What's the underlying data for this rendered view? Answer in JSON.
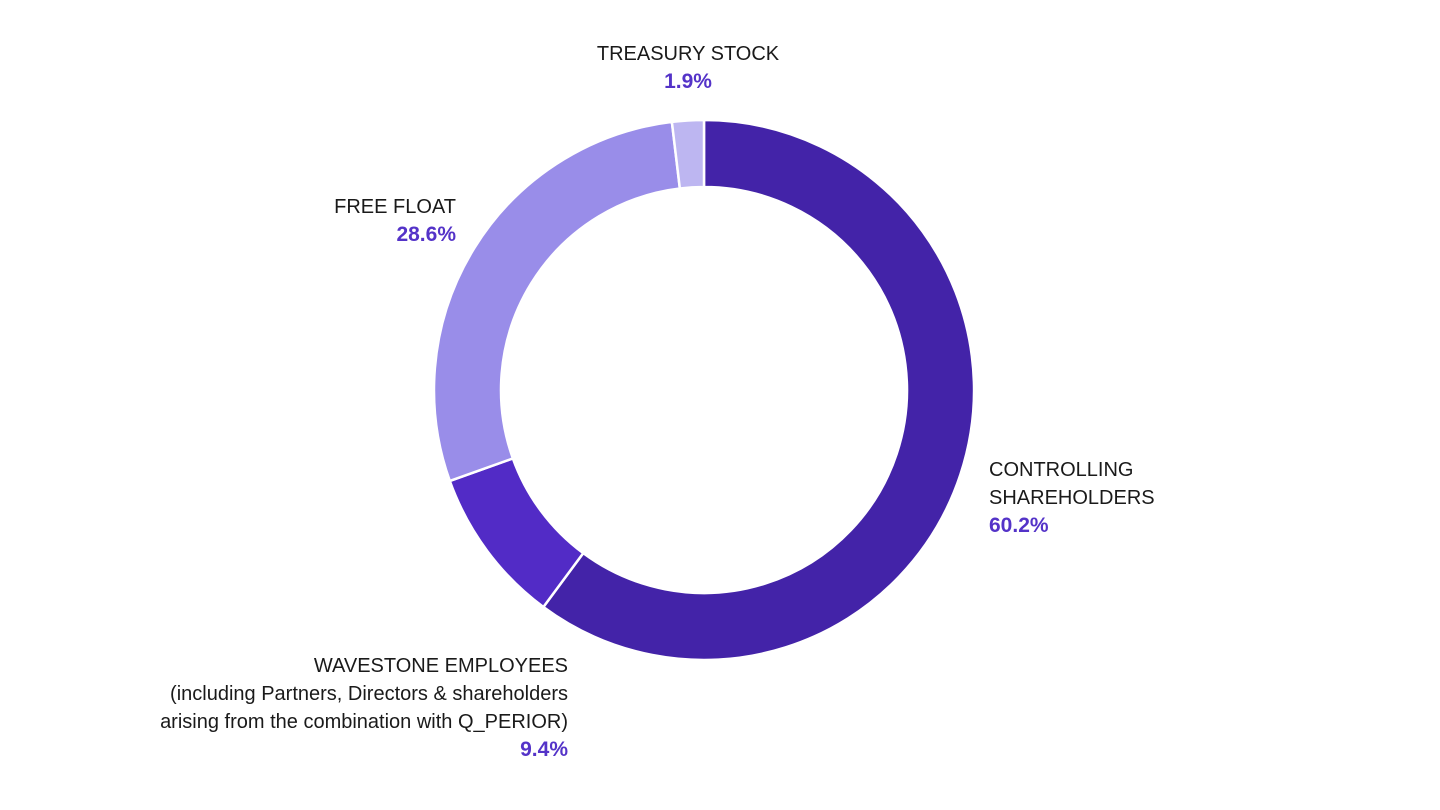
{
  "chart_data": {
    "type": "pie",
    "donut": true,
    "slices": [
      {
        "label": "CONTROLLING SHAREHOLDERS",
        "value": 60.2,
        "value_label": "60.2%",
        "color": "#4323A8"
      },
      {
        "label": "WAVESTONE EMPLOYEES (including Partners, Directors & shareholders arising from the combination with Q_PERIOR)",
        "value": 9.4,
        "value_label": "9.4%",
        "color": "#522BC6"
      },
      {
        "label": "FREE FLOAT",
        "value": 28.6,
        "value_label": "28.6%",
        "color": "#998DE9"
      },
      {
        "label": "TREASURY STOCK",
        "value": 1.9,
        "value_label": "1.9%",
        "color": "#BDB6F1"
      }
    ],
    "start": "12 o'clock",
    "direction": "clockwise",
    "separator_color": "#ffffff",
    "value_label_color": "#5433C8",
    "label_color": "#1a1a1a"
  },
  "labels": {
    "controlling": {
      "lines": [
        "CONTROLLING",
        "SHAREHOLDERS"
      ],
      "value": "60.2%"
    },
    "employees": {
      "lines": [
        "WAVESTONE EMPLOYEES",
        "(including Partners, Directors & shareholders",
        "arising from the combination with Q_PERIOR)"
      ],
      "value": "9.4%"
    },
    "free_float": {
      "lines": [
        "FREE FLOAT"
      ],
      "value": "28.6%"
    },
    "treasury": {
      "lines": [
        "TREASURY STOCK"
      ],
      "value": "1.9%"
    }
  }
}
